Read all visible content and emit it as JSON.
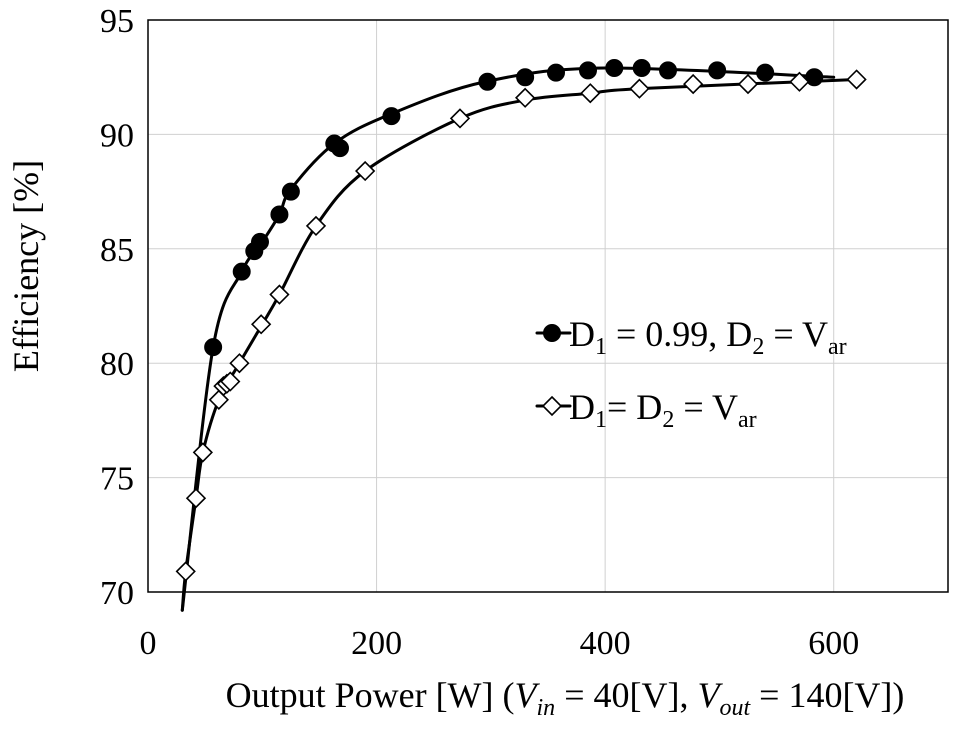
{
  "chart_data": {
    "type": "line",
    "xlabel": {
      "prefix": "Output Power [W] (",
      "vin_var": "V",
      "vin_sub": "in",
      "vin_val": " = 40[V], ",
      "vout_var": "V",
      "vout_sub": "out",
      "vout_val": " = 140[V])"
    },
    "ylabel": "Efficiency [%]",
    "xlim": [
      0,
      700
    ],
    "ylim": [
      70,
      95
    ],
    "xticks": [
      0,
      200,
      400,
      600
    ],
    "yticks": [
      70,
      75,
      80,
      85,
      90,
      95
    ],
    "xtick_labels": [
      "0",
      "200",
      "400",
      "600"
    ],
    "ytick_labels": [
      "70",
      "75",
      "80",
      "85",
      "90",
      "95"
    ],
    "grid": true,
    "legend_position": "center-right",
    "series": [
      {
        "marker": "circle-filled",
        "color": "#000000",
        "legend": {
          "d1": "D",
          "d1_sub": "1",
          "mid": " = 0.99, D",
          "d2_sub": "2",
          "eq": " = V",
          "var_sub": "ar"
        },
        "curve": [
          [
            30,
            69.2
          ],
          [
            57,
            80.7
          ],
          [
            82,
            84.0
          ],
          [
            100,
            85.3
          ],
          [
            115,
            86.5
          ],
          [
            125,
            87.6
          ],
          [
            163,
            89.6
          ],
          [
            213,
            90.9
          ],
          [
            295,
            92.3
          ],
          [
            400,
            92.9
          ],
          [
            600,
            92.5
          ]
        ],
        "points": [
          [
            57,
            80.7
          ],
          [
            82,
            84.0
          ],
          [
            93,
            84.9
          ],
          [
            98,
            85.3
          ],
          [
            115,
            86.5
          ],
          [
            125,
            87.5
          ],
          [
            163,
            89.6
          ],
          [
            168,
            89.4
          ],
          [
            213,
            90.8
          ],
          [
            297,
            92.3
          ],
          [
            330,
            92.5
          ],
          [
            357,
            92.7
          ],
          [
            385,
            92.8
          ],
          [
            408,
            92.9
          ],
          [
            432,
            92.9
          ],
          [
            455,
            92.8
          ],
          [
            498,
            92.8
          ],
          [
            540,
            92.7
          ],
          [
            583,
            92.5
          ]
        ]
      },
      {
        "marker": "diamond-open",
        "color": "#000000",
        "legend": {
          "d1": "D",
          "d1_sub": "1",
          "mid": "= D",
          "d2_sub": "2",
          "eq": " = V",
          "var_sub": "ar"
        },
        "curve": [
          [
            30,
            69.2
          ],
          [
            33,
            70.9
          ],
          [
            42,
            74.1
          ],
          [
            48,
            76.1
          ],
          [
            62,
            78.4
          ],
          [
            80,
            80.0
          ],
          [
            100,
            81.7
          ],
          [
            115,
            83.0
          ],
          [
            147,
            86.0
          ],
          [
            190,
            88.4
          ],
          [
            273,
            90.7
          ],
          [
            330,
            91.5
          ],
          [
            387,
            91.8
          ],
          [
            430,
            92.0
          ],
          [
            620,
            92.4
          ]
        ],
        "points": [
          [
            33,
            70.9
          ],
          [
            42,
            74.1
          ],
          [
            48,
            76.1
          ],
          [
            62,
            78.4
          ],
          [
            66,
            79.0
          ],
          [
            69,
            79.1
          ],
          [
            72,
            79.2
          ],
          [
            80,
            80.0
          ],
          [
            99,
            81.7
          ],
          [
            115,
            83.0
          ],
          [
            147,
            86.0
          ],
          [
            190,
            88.4
          ],
          [
            273,
            90.7
          ],
          [
            330,
            91.6
          ],
          [
            387,
            91.8
          ],
          [
            430,
            92.0
          ],
          [
            477,
            92.2
          ],
          [
            525,
            92.2
          ],
          [
            570,
            92.3
          ],
          [
            620,
            92.4
          ]
        ]
      }
    ]
  }
}
